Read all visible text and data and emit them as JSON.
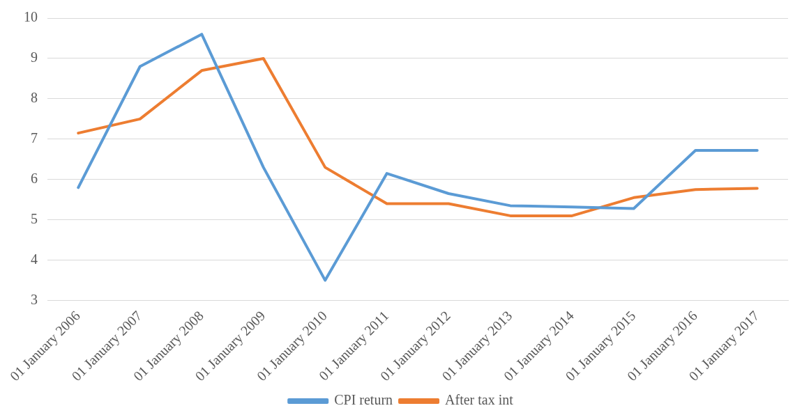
{
  "chart_data": {
    "type": "line",
    "categories": [
      "01 January 2006",
      "01 January 2007",
      "01 January 2008",
      "01 January 2009",
      "01 January 2010",
      "01 January 2011",
      "01 January 2012",
      "01 January 2013",
      "01 January 2014",
      "01 January 2015",
      "01 January 2016",
      "01 January 2017"
    ],
    "series": [
      {
        "name": "CPI return",
        "color": "#5b9bd5",
        "values": [
          5.8,
          8.8,
          9.6,
          6.3,
          3.5,
          6.15,
          5.65,
          5.35,
          5.32,
          5.28,
          6.72,
          6.72
        ]
      },
      {
        "name": "After tax int",
        "color": "#ed7d31",
        "values": [
          7.15,
          7.5,
          8.7,
          9.0,
          6.3,
          5.4,
          5.4,
          5.1,
          5.1,
          5.55,
          5.75,
          5.78
        ]
      }
    ],
    "ylim": [
      3,
      10
    ],
    "yticks": [
      3,
      4,
      5,
      6,
      7,
      8,
      9,
      10
    ],
    "grid": "y",
    "legend": "bottom",
    "marker": "none",
    "line_style": "solid"
  }
}
